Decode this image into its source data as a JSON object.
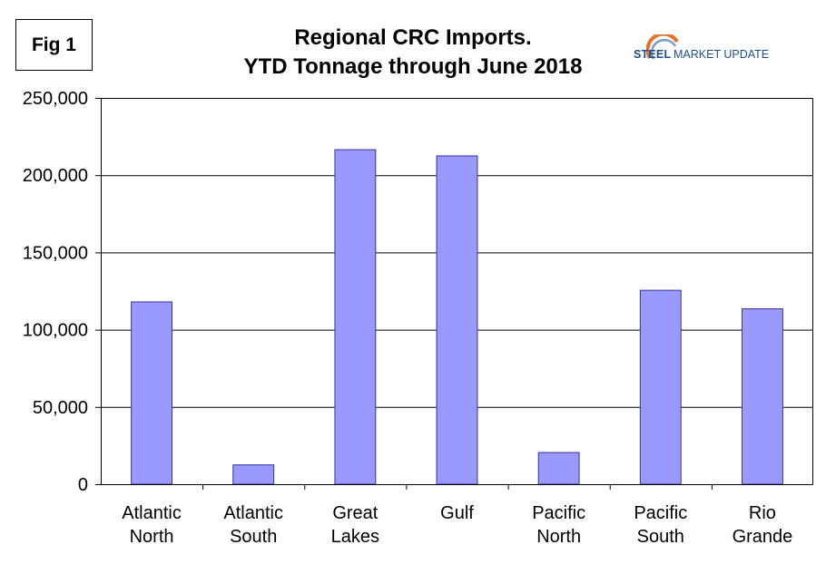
{
  "figure_label": "Fig 1",
  "logo": {
    "brand_bold": "STEEL",
    "brand_rest": "MARKET UPDATE"
  },
  "chart_data": {
    "type": "bar",
    "title_line1": "Regional CRC Imports.",
    "title_line2": "YTD Tonnage through June 2018",
    "categories": [
      [
        "Atlantic",
        "North"
      ],
      [
        "Atlantic",
        "South"
      ],
      [
        "Great",
        "Lakes"
      ],
      [
        "Gulf"
      ],
      [
        "Pacific",
        "North"
      ],
      [
        "Pacific",
        "South"
      ],
      [
        "Rio",
        "Grande"
      ]
    ],
    "values": [
      118000,
      12500,
      216500,
      212500,
      20500,
      125500,
      113500
    ],
    "ylim": [
      0,
      250000
    ],
    "yticks": [
      0,
      50000,
      100000,
      150000,
      200000,
      250000
    ],
    "ytick_labels": [
      "0",
      "50,000",
      "100,000",
      "150,000",
      "200,000",
      "250,000"
    ],
    "grid": true,
    "bar_color": "#9999ff",
    "bar_edge_color": "#333399",
    "grid_color": "#000000"
  }
}
